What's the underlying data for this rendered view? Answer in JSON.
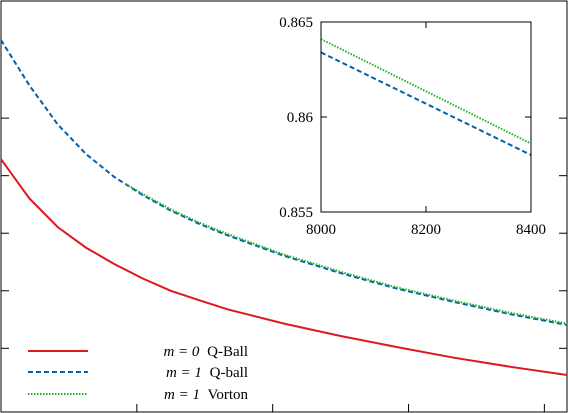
{
  "chart_data": [
    {
      "type": "line",
      "xlim": [
        0,
        1
      ],
      "ylim": [
        0,
        1
      ],
      "axes_ticks_visible": "no tick labels printed on main axes",
      "legend": "bottom-left",
      "grid": false,
      "series": [
        {
          "name": "m = 0 Q-Ball",
          "name_math": "m = 0",
          "name_text": "Q-Ball",
          "color": "#dd181f",
          "dash": "solid",
          "x": [
            0.0,
            0.05,
            0.1,
            0.15,
            0.2,
            0.25,
            0.3,
            0.35,
            0.4,
            0.5,
            0.6,
            0.7,
            0.8,
            0.9,
            1.0
          ],
          "y": [
            0.615,
            0.52,
            0.45,
            0.4,
            0.36,
            0.325,
            0.295,
            0.272,
            0.25,
            0.215,
            0.185,
            0.158,
            0.132,
            0.11,
            0.09
          ]
        },
        {
          "name": "m = 1 Q-ball",
          "name_math": "m = 1",
          "name_text": "Q-ball",
          "color": "#0060ad",
          "dash": "dashed",
          "x": [
            0.0,
            0.05,
            0.1,
            0.15,
            0.2,
            0.25,
            0.3,
            0.35,
            0.4,
            0.5,
            0.6,
            0.7,
            0.8,
            0.9,
            1.0
          ],
          "y": [
            0.905,
            0.795,
            0.7,
            0.628,
            0.572,
            0.528,
            0.49,
            0.458,
            0.43,
            0.38,
            0.338,
            0.3,
            0.268,
            0.238,
            0.212
          ]
        },
        {
          "name": "m = 1 Vorton",
          "name_math": "m = 1",
          "name_text": "Vorton",
          "color": "#21b021",
          "dash": "dotted",
          "x": [
            0.22,
            0.25,
            0.3,
            0.35,
            0.4,
            0.5,
            0.6,
            0.7,
            0.8,
            0.9,
            1.0
          ],
          "y": [
            0.555,
            0.531,
            0.493,
            0.461,
            0.433,
            0.383,
            0.341,
            0.303,
            0.271,
            0.241,
            0.215
          ]
        }
      ]
    },
    {
      "type": "line",
      "inset": true,
      "xlim": [
        8000,
        8400
      ],
      "ylim": [
        0.855,
        0.865
      ],
      "xticks": [
        "8000",
        "8200",
        "8400"
      ],
      "yticks": [
        "0.855",
        "0.86",
        "0.865"
      ],
      "grid": false,
      "series": [
        {
          "name": "m = 1 Q-ball",
          "color": "#0060ad",
          "dash": "dashed",
          "x": [
            8000,
            8400
          ],
          "y": [
            0.8634,
            0.858
          ]
        },
        {
          "name": "m = 1 Vorton",
          "color": "#21b021",
          "dash": "dotted",
          "x": [
            8000,
            8400
          ],
          "y": [
            0.8641,
            0.8586
          ]
        }
      ]
    }
  ]
}
